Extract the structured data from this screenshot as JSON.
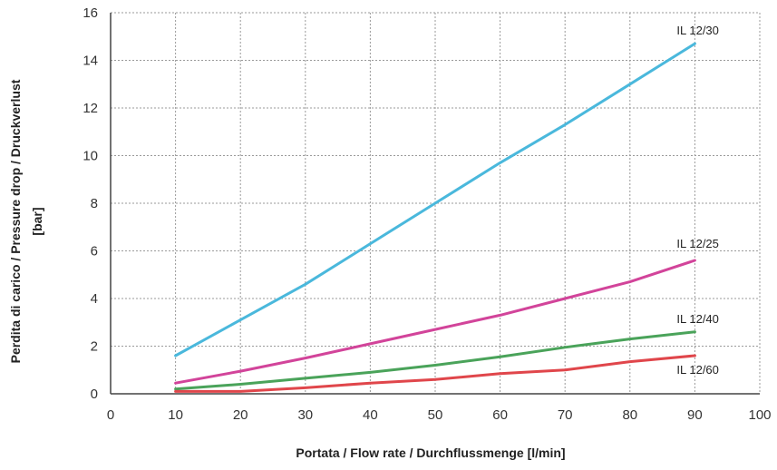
{
  "chart_data": {
    "type": "line",
    "title": "",
    "xlabel": "Portata / Flow rate /  Durchflussmenge [l/min]",
    "ylabel": [
      "Perdita di carico / Pressure drop / Druckverlust",
      "[bar]"
    ],
    "xlim": [
      0,
      100
    ],
    "ylim": [
      0,
      16
    ],
    "xticks": [
      0,
      10,
      20,
      30,
      40,
      50,
      60,
      70,
      80,
      90,
      100
    ],
    "yticks": [
      0,
      2,
      4,
      6,
      8,
      10,
      12,
      14,
      16
    ],
    "grid": true,
    "legend": "labels at line ends",
    "series": [
      {
        "name": "IL 12/30",
        "color": "#4ab8dc",
        "x": [
          10,
          20,
          30,
          40,
          50,
          60,
          70,
          80,
          90
        ],
        "y": [
          1.6,
          3.1,
          4.6,
          6.3,
          8.0,
          9.7,
          11.3,
          13.0,
          14.7
        ]
      },
      {
        "name": "IL 12/25",
        "color": "#d2449a",
        "x": [
          10,
          20,
          30,
          40,
          50,
          60,
          70,
          80,
          90
        ],
        "y": [
          0.45,
          0.95,
          1.5,
          2.1,
          2.7,
          3.3,
          4.0,
          4.7,
          5.6
        ]
      },
      {
        "name": "IL 12/40",
        "color": "#4aa35a",
        "x": [
          10,
          20,
          30,
          40,
          50,
          60,
          70,
          80,
          90
        ],
        "y": [
          0.2,
          0.4,
          0.65,
          0.9,
          1.2,
          1.55,
          1.95,
          2.3,
          2.6
        ]
      },
      {
        "name": "IL 12/60",
        "color": "#e0464b",
        "x": [
          10,
          20,
          30,
          40,
          50,
          60,
          70,
          80,
          90
        ],
        "y": [
          0.1,
          0.1,
          0.25,
          0.45,
          0.6,
          0.85,
          1.0,
          1.35,
          1.6
        ]
      }
    ]
  }
}
